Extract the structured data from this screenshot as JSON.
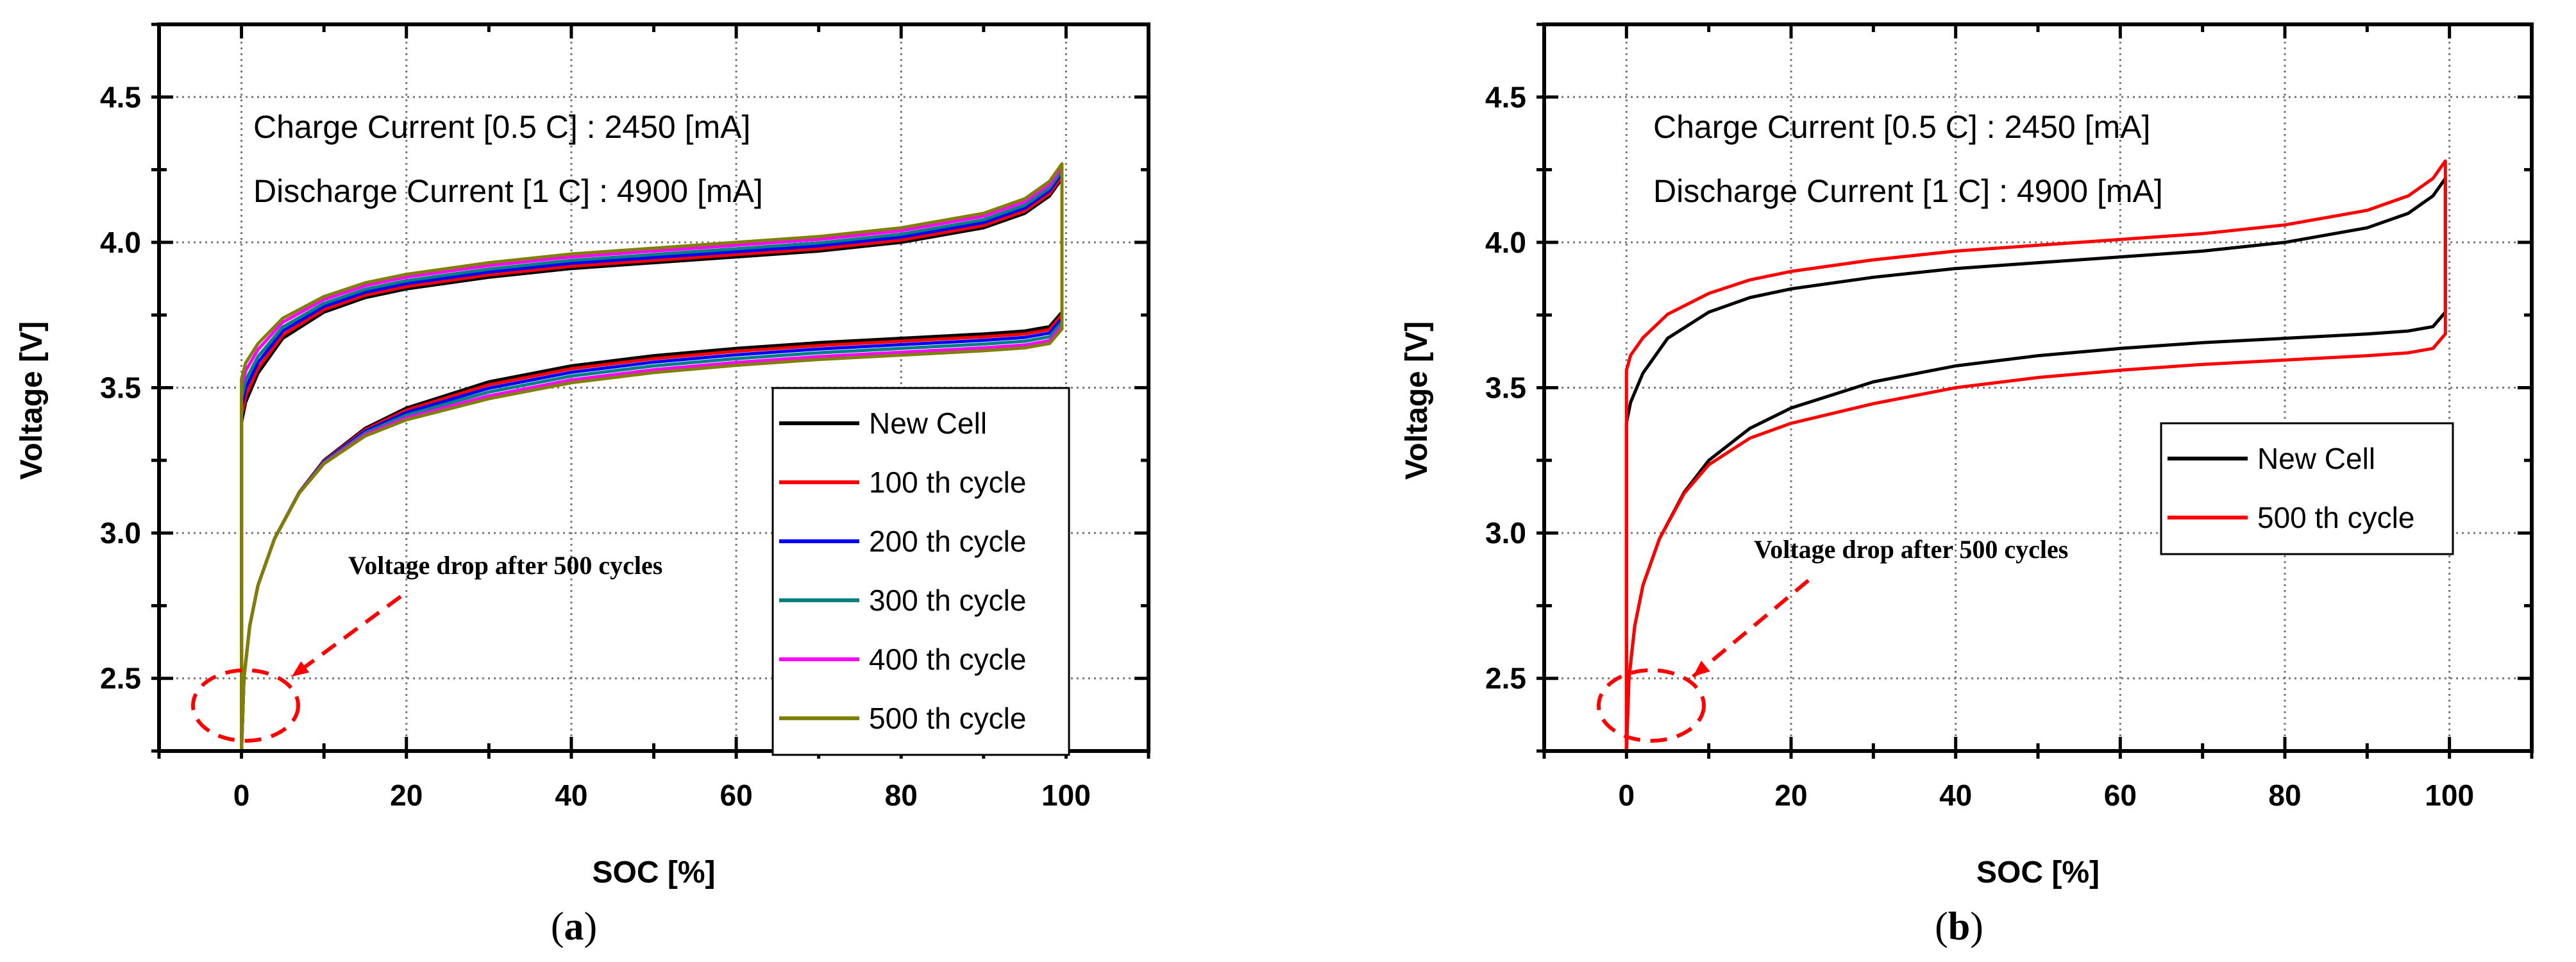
{
  "chart_data": [
    {
      "id": "a",
      "type": "line",
      "caption_letter": "a",
      "caption_open": "(",
      "caption_close": ")",
      "xlabel": "SOC [%]",
      "ylabel": "Voltage [V]",
      "xlim": [
        -10,
        110
      ],
      "ylim": [
        2.25,
        4.75
      ],
      "xticks": [
        0,
        20,
        40,
        60,
        80,
        100
      ],
      "xtick_labels": [
        "0",
        "20",
        "40",
        "60",
        "80",
        "100"
      ],
      "yticks": [
        2.5,
        3.0,
        3.5,
        4.0,
        4.5
      ],
      "ytick_labels": [
        "2.5",
        "3.0",
        "3.5",
        "4.0",
        "4.5"
      ],
      "grid": true,
      "annotations": [
        "Charge Current [0.5 C] : 2450 [mA]",
        "Discharge Current [1 C] : 4900 [mA]"
      ],
      "callout": "Voltage drop after 500 cycles",
      "legend_position": "center-right",
      "series": [
        {
          "name": "New Cell",
          "color": "#000000",
          "charge_shift": 0.0,
          "discharge_shift": 0.0
        },
        {
          "name": "100 th cycle",
          "color": "#ff0000",
          "charge_shift": 0.008,
          "discharge_shift": -0.01
        },
        {
          "name": "200 th cycle",
          "color": "#0000ff",
          "charge_shift": 0.018,
          "discharge_shift": -0.022
        },
        {
          "name": "300 th cycle",
          "color": "#008080",
          "charge_shift": 0.028,
          "discharge_shift": -0.035
        },
        {
          "name": "400 th cycle",
          "color": "#ff00ff",
          "charge_shift": 0.04,
          "discharge_shift": -0.048
        },
        {
          "name": "500 th cycle",
          "color": "#808000",
          "charge_shift": 0.05,
          "discharge_shift": -0.058
        }
      ]
    },
    {
      "id": "b",
      "type": "line",
      "caption_letter": "b",
      "caption_open": "(",
      "caption_close": ")",
      "xlabel": "SOC [%]",
      "ylabel": "Voltage [V]",
      "xlim": [
        -10,
        110
      ],
      "ylim": [
        2.25,
        4.75
      ],
      "xticks": [
        0,
        20,
        40,
        60,
        80,
        100
      ],
      "xtick_labels": [
        "0",
        "20",
        "40",
        "60",
        "80",
        "100"
      ],
      "yticks": [
        2.5,
        3.0,
        3.5,
        4.0,
        4.5
      ],
      "ytick_labels": [
        "2.5",
        "3.0",
        "3.5",
        "4.0",
        "4.5"
      ],
      "grid": true,
      "annotations": [
        "Charge Current [0.5 C] : 2450 [mA]",
        "Discharge Current [1 C] : 4900 [mA]"
      ],
      "callout": "Voltage drop after 500 cycles",
      "legend_position": "center-right",
      "series": [
        {
          "name": "New Cell",
          "color": "#000000",
          "charge_shift": 0.0,
          "discharge_shift": 0.0
        },
        {
          "name": "500 th cycle",
          "color": "#ff0000",
          "charge_shift": 0.06,
          "discharge_shift": -0.075
        }
      ]
    }
  ],
  "base_curve": {
    "charge": [
      [
        0,
        2.25
      ],
      [
        0,
        3.38
      ],
      [
        0.5,
        3.45
      ],
      [
        2,
        3.55
      ],
      [
        5,
        3.67
      ],
      [
        10,
        3.76
      ],
      [
        15,
        3.81
      ],
      [
        20,
        3.84
      ],
      [
        30,
        3.88
      ],
      [
        40,
        3.91
      ],
      [
        50,
        3.93
      ],
      [
        60,
        3.95
      ],
      [
        70,
        3.97
      ],
      [
        80,
        4.0
      ],
      [
        90,
        4.05
      ],
      [
        95,
        4.1
      ],
      [
        98,
        4.16
      ],
      [
        99.5,
        4.22
      ]
    ],
    "discharge": [
      [
        99.5,
        4.22
      ],
      [
        99.5,
        3.76
      ],
      [
        98,
        3.71
      ],
      [
        95,
        3.695
      ],
      [
        90,
        3.685
      ],
      [
        80,
        3.67
      ],
      [
        70,
        3.655
      ],
      [
        60,
        3.635
      ],
      [
        50,
        3.61
      ],
      [
        40,
        3.575
      ],
      [
        30,
        3.52
      ],
      [
        20,
        3.43
      ],
      [
        15,
        3.36
      ],
      [
        10,
        3.25
      ],
      [
        7,
        3.14
      ],
      [
        4,
        2.98
      ],
      [
        2,
        2.82
      ],
      [
        1,
        2.68
      ],
      [
        0.3,
        2.5
      ],
      [
        0,
        2.25
      ]
    ]
  }
}
